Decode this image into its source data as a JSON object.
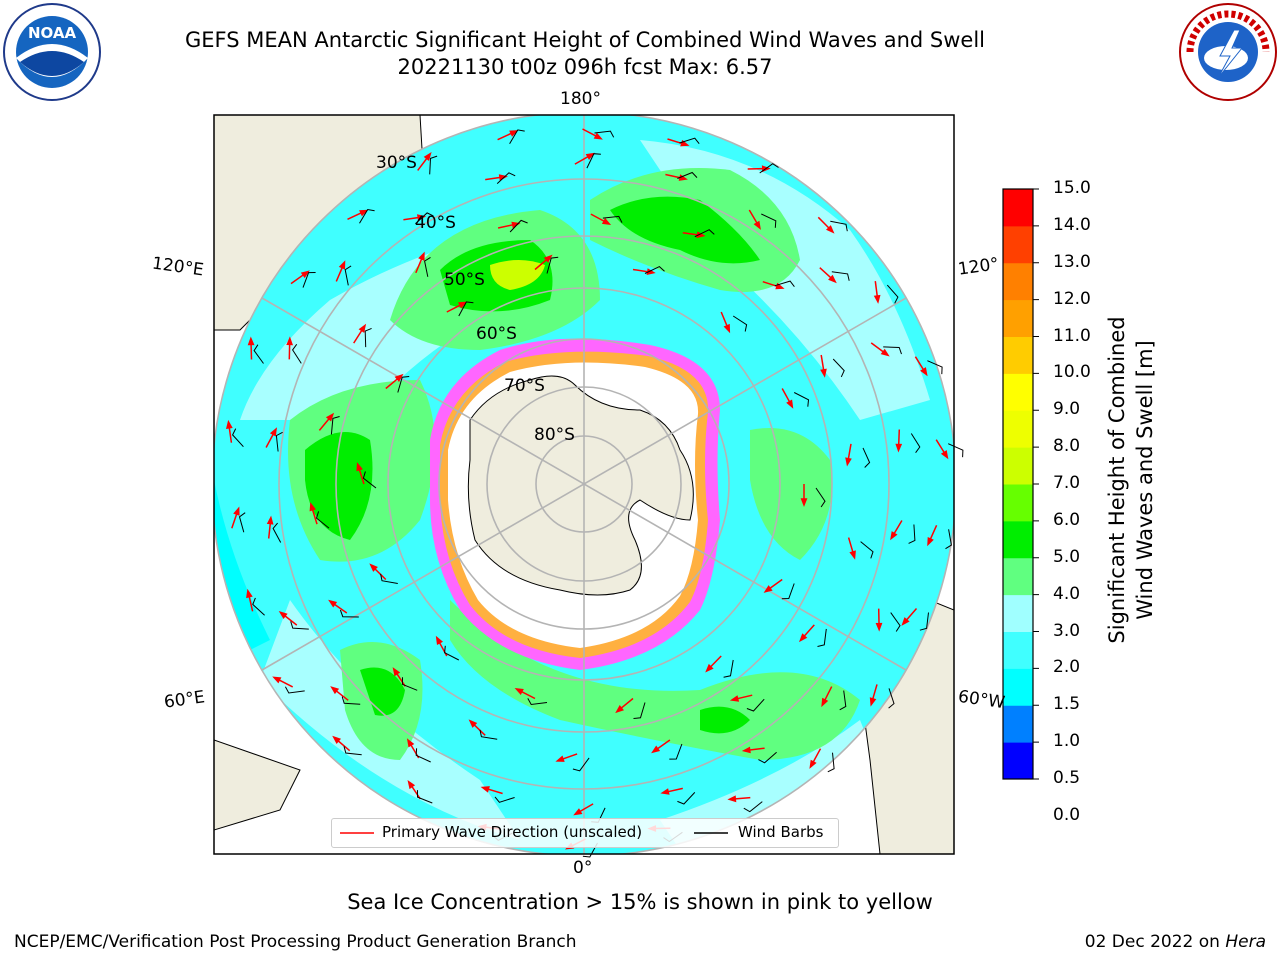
{
  "header": {
    "title_line1": "GEFS MEAN Antarctic Significant Height of Combined Wind Waves and Swell",
    "title_line2": "20221130 t00z 096h fcst   Max: 6.57"
  },
  "logos": {
    "noaa_text": "NOAA",
    "nws_text": "NATIONAL WEATHER SERVICE"
  },
  "map": {
    "longitude_labels": {
      "top": "180°",
      "bottom": "0°",
      "left_upper": "120°E",
      "left_lower": "60°E",
      "right_upper": "120°",
      "right_lower": "60°W"
    },
    "latitude_labels": [
      "30°S",
      "40°S",
      "50°S",
      "60°S",
      "70°S",
      "80°S"
    ],
    "legend": {
      "wave_label": "Primary Wave Direction (unscaled)",
      "wind_label": "Wind Barbs",
      "wave_color": "#ff0000",
      "wind_color": "#000000"
    }
  },
  "colorbar": {
    "label_line1": "Significant Height of Combined",
    "label_line2": "Wind Waves and Swell [m]",
    "ticks": [
      "15.0",
      "14.0",
      "13.0",
      "12.0",
      "11.0",
      "10.0",
      "9.0",
      "8.0",
      "7.0",
      "6.0",
      "5.0",
      "4.0",
      "3.0",
      "2.0",
      "1.5",
      "1.0",
      "0.5",
      "0.0"
    ],
    "colors_bottom_to_top": [
      "#0000ff",
      "#0080ff",
      "#00ffff",
      "#40ffff",
      "#a0ffff",
      "#60ff80",
      "#00ee00",
      "#66ff00",
      "#ccff00",
      "#eeff00",
      "#ffff00",
      "#ffcc00",
      "#ffa000",
      "#ff8000",
      "#ff4000",
      "#ff0000"
    ]
  },
  "notes": {
    "sea_ice": "Sea Ice Concentration > 15% is shown in pink to yellow"
  },
  "footer": {
    "left": "NCEP/EMC/Verification Post Processing Product Generation Branch",
    "right_prefix": "02 Dec 2022 on ",
    "right_host": "Hera"
  }
}
